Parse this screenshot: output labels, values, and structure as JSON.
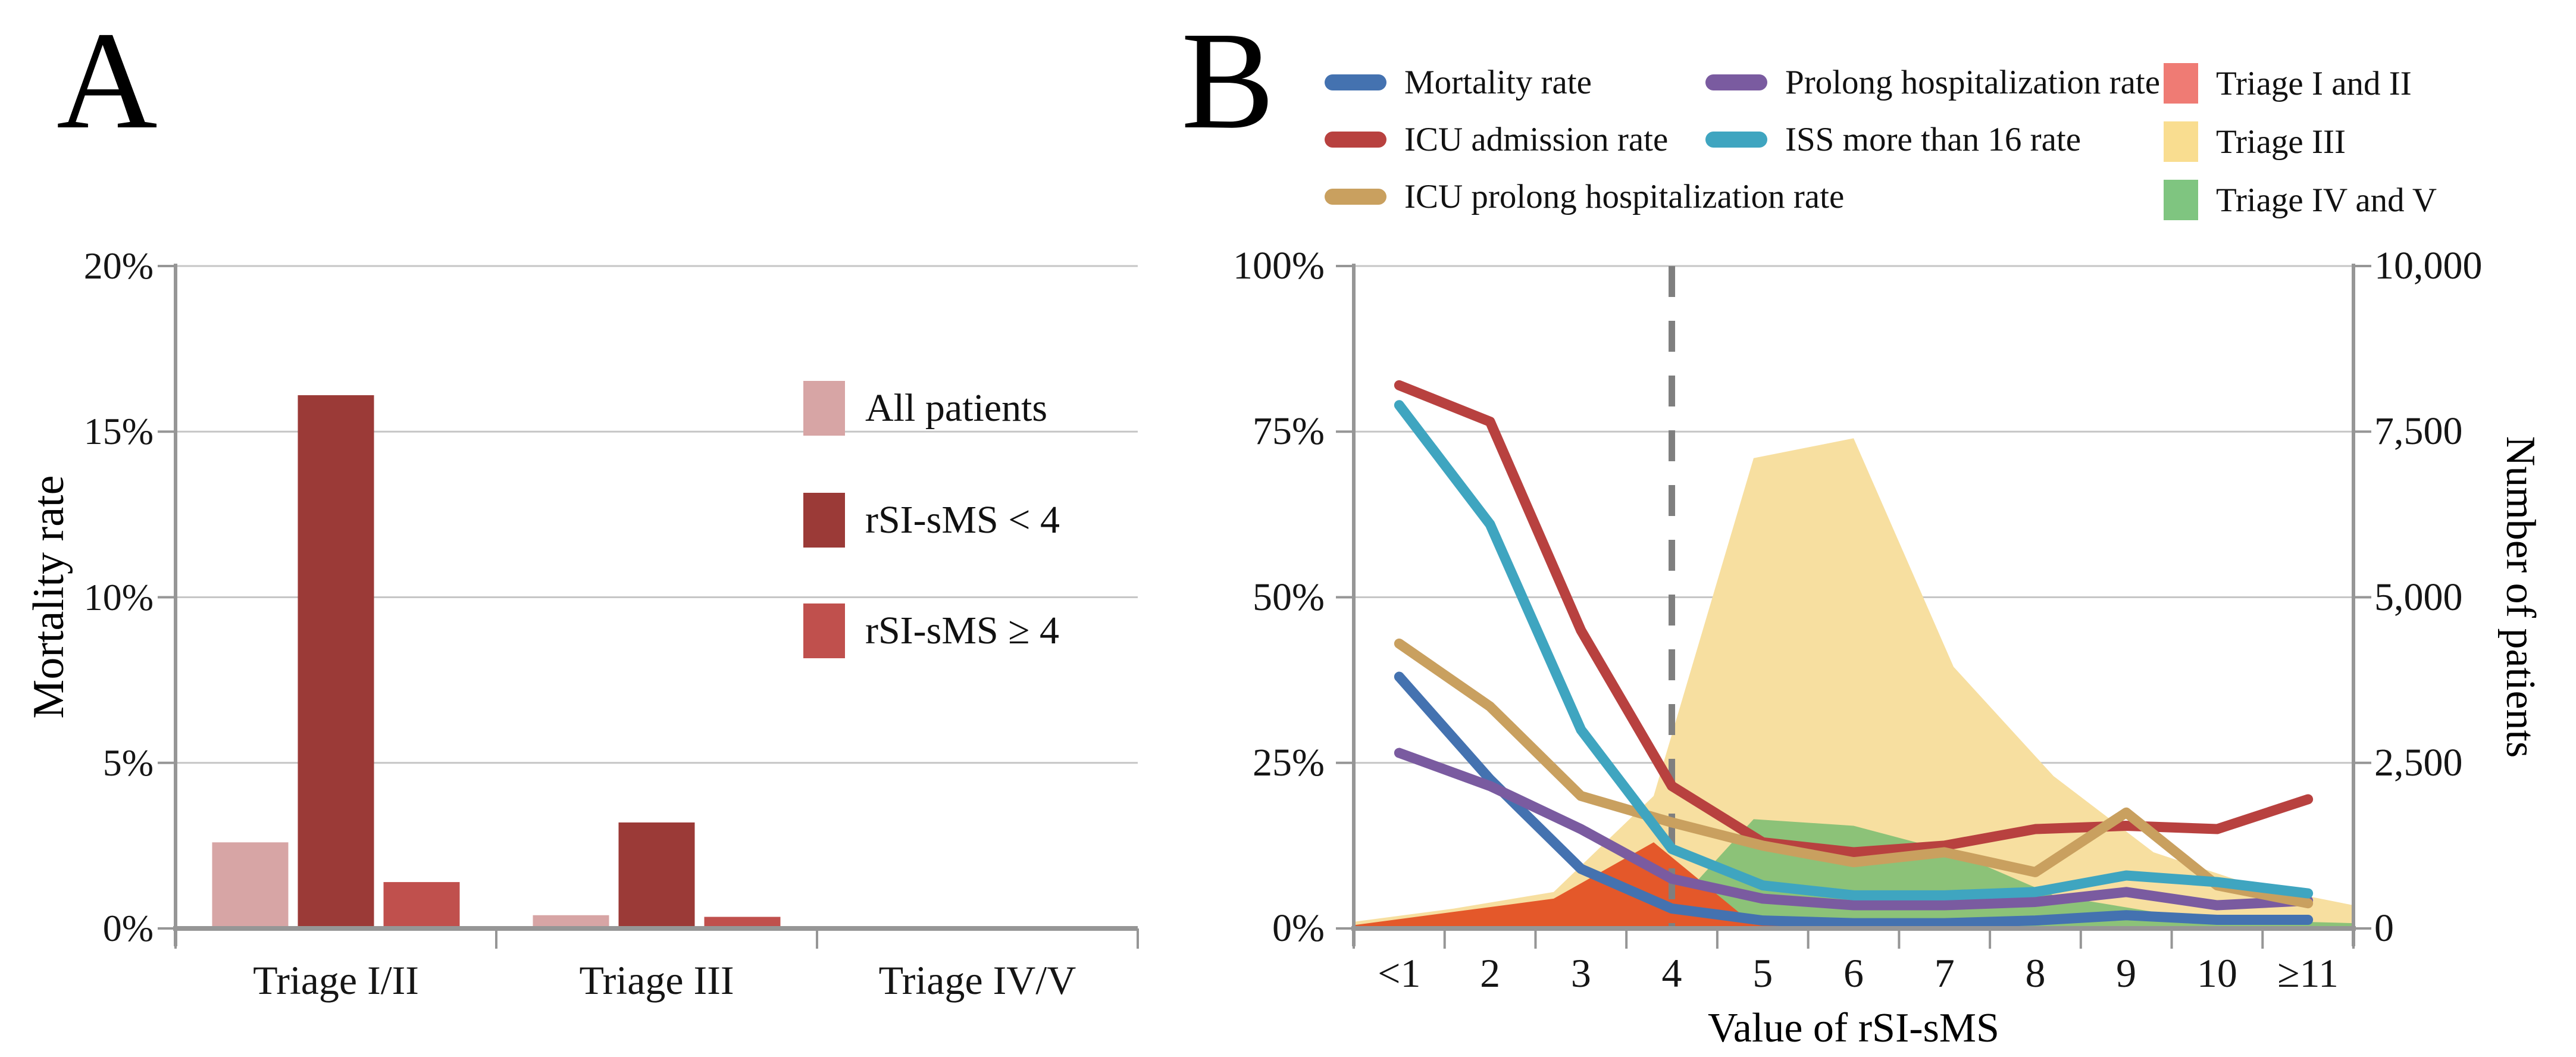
{
  "figure": {
    "panel_a_letter": "A",
    "panel_b_letter": "B"
  },
  "chart_data": [
    {
      "panel": "A",
      "type": "bar",
      "ylabel": "Mortality rate",
      "y_ticks": [
        "20%",
        "15%",
        "10%",
        "5%",
        "0%"
      ],
      "ylim": [
        0,
        20
      ],
      "grid": true,
      "legend_position": "inside-right",
      "categories": [
        "Triage I/II",
        "Triage III",
        "Triage IV/V"
      ],
      "series": [
        {
          "name": "All patients",
          "color": "#d7a5a5",
          "values": [
            2.6,
            0.4,
            0
          ]
        },
        {
          "name": "rSI-sMS < 4",
          "color": "#9b3a37",
          "values": [
            16.1,
            3.2,
            0
          ]
        },
        {
          "name": "rSI-sMS ≥ 4",
          "color": "#c0504d",
          "values": [
            1.4,
            0.35,
            0
          ]
        }
      ]
    },
    {
      "panel": "B",
      "type": "line-area",
      "xlabel": "Value of rSI-sMS",
      "categories": [
        "<1",
        "2",
        "3",
        "4",
        "5",
        "6",
        "7",
        "8",
        "9",
        "10",
        "≥11"
      ],
      "y_left": {
        "ticks": [
          "100%",
          "75%",
          "50%",
          "25%",
          "0%"
        ],
        "lim": [
          0,
          100
        ]
      },
      "y_right": {
        "title": "Number of patients",
        "ticks": [
          "10,000",
          "7,500",
          "5,000",
          "2,500",
          "0"
        ],
        "lim": [
          0,
          10000
        ]
      },
      "reference_line_x": "4",
      "grid": true,
      "legend_position": "top",
      "area_series": [
        {
          "name": "Triage III",
          "color": "#f7dfa0",
          "legend_color": "#f9dd90",
          "axis": "right",
          "values": [
            100,
            300,
            550,
            2000,
            7100,
            7400,
            3950,
            2300,
            1150,
            650,
            350
          ]
        },
        {
          "name": "Triage IV and V",
          "color": "#8cc278",
          "legend_color": "#7fc580",
          "axis": "right",
          "values": [
            0,
            0,
            0,
            0,
            1650,
            1550,
            1150,
            500,
            250,
            120,
            80
          ]
        },
        {
          "name": "Triage I and II",
          "color": "#e4582a",
          "legend_color": "#ef7b74",
          "axis": "right",
          "values": [
            50,
            250,
            450,
            1300,
            60,
            0,
            0,
            0,
            0,
            0,
            0
          ]
        }
      ],
      "line_series": [
        {
          "name": "Mortality rate",
          "color": "#4472b0",
          "axis": "left",
          "values": [
            38,
            22.5,
            9,
            3,
            1.2,
            0.8,
            0.8,
            1.2,
            2,
            1.3,
            1.3
          ]
        },
        {
          "name": "Prolong hospitalization rate",
          "color": "#7a5ba0",
          "axis": "left",
          "values": [
            26.5,
            21.5,
            15,
            7.5,
            4.5,
            3.5,
            3.5,
            4,
            5.5,
            3.5,
            4.2
          ]
        },
        {
          "name": "ICU admission rate",
          "color": "#b8413f",
          "axis": "left",
          "values": [
            82,
            76.5,
            45,
            21.5,
            13,
            11.5,
            12.5,
            15,
            15.5,
            15,
            19.5
          ]
        },
        {
          "name": "ICU prolong hospitalization rate",
          "color": "#c9a05f",
          "axis": "left",
          "values": [
            43,
            33.5,
            20,
            16,
            12.5,
            10,
            11.5,
            8.5,
            17.5,
            6.5,
            3.8
          ]
        },
        {
          "name": "ISS more than 16 rate",
          "color": "#3fa5c0",
          "axis": "left",
          "values": [
            79,
            61,
            30,
            12,
            6.5,
            5,
            5,
            5.5,
            8,
            7,
            5.3
          ]
        }
      ]
    }
  ]
}
